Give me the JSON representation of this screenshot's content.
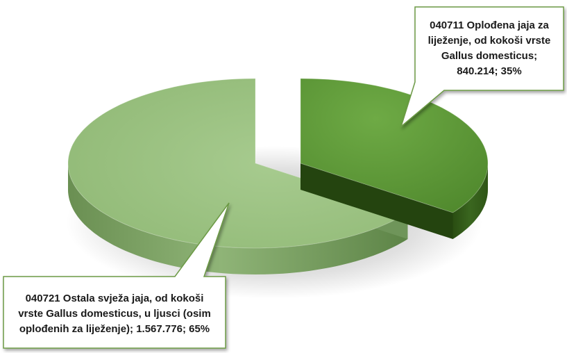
{
  "chart_data": {
    "type": "pie",
    "title": "",
    "style": "3d-exploded",
    "series": [
      {
        "values": [
          840214,
          1567776
        ],
        "labels": [
          "040711 Oplođena jaja za liježenje, od kokoši vrste Gallus domesticus",
          "040721 Ostala svježa jaja, od kokoši vrste Gallus domesticus, u ljusci (osim oplođenih za liježenje)"
        ],
        "percents": [
          35,
          65
        ],
        "value_text": [
          "840.214",
          "1.567.776"
        ],
        "colors": [
          "#5f9a39",
          "#9cc283"
        ]
      }
    ],
    "data_labels": [
      {
        "name": "label-slice-1",
        "lines": [
          "040711 Oplođena jaja za",
          "liježenje, od kokoši vrste",
          "Gallus domesticus;",
          "840.214; 35%"
        ]
      },
      {
        "name": "label-slice-2",
        "lines": [
          "040721 Ostala svježa jaja, od kokoši",
          "vrste Gallus domesticus, u ljusci (osim",
          "oplođenih za liježenje); 1.567.776; 65%"
        ]
      }
    ]
  }
}
